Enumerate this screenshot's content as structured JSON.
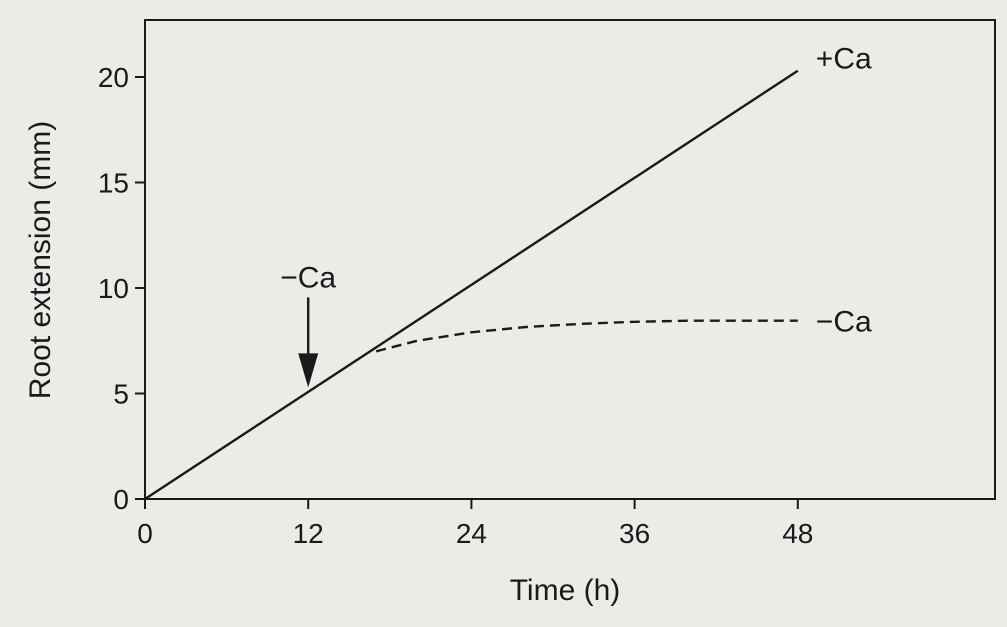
{
  "chart_data": {
    "type": "line",
    "title": "",
    "xlabel": "Time (h)",
    "ylabel": "Root extension (mm)",
    "xlim": [
      0,
      48
    ],
    "ylim": [
      0,
      22
    ],
    "xticks": [
      0,
      12,
      24,
      36,
      48
    ],
    "yticks": [
      0,
      5,
      10,
      15,
      20
    ],
    "grid": false,
    "series": [
      {
        "name": "+Ca",
        "style": "solid",
        "color": "#1a1a1a",
        "x": [
          0,
          48
        ],
        "y": [
          0,
          20.3
        ]
      },
      {
        "name": "−Ca",
        "style": "dashed",
        "color": "#1a1a1a",
        "x": [
          17,
          20,
          24,
          28,
          32,
          36,
          40,
          44,
          48
        ],
        "y": [
          7.0,
          7.5,
          7.9,
          8.15,
          8.3,
          8.4,
          8.45,
          8.45,
          8.45
        ]
      }
    ],
    "annotations": [
      {
        "text": "−Ca",
        "kind": "arrow",
        "x": 12,
        "y": 5.1
      }
    ]
  }
}
